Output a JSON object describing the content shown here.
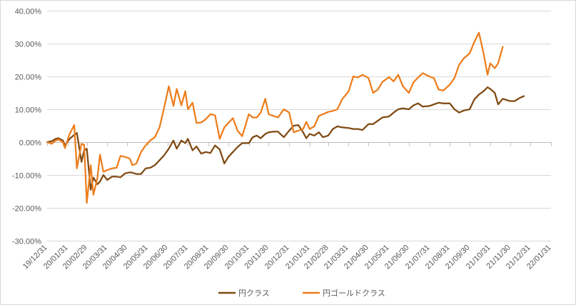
{
  "chart_data": {
    "type": "line",
    "title": "",
    "xlabel": "",
    "ylabel": "",
    "ylim": [
      -0.3,
      0.4
    ],
    "ytick_values": [
      -0.3,
      -0.2,
      -0.1,
      0.0,
      0.1,
      0.2,
      0.3,
      0.4
    ],
    "ytick_labels": [
      "-30.00%",
      "-20.00%",
      "-10.00%",
      "0.00%",
      "10.00%",
      "20.00%",
      "30.00%",
      "40.00%"
    ],
    "xlim": [
      "2019-12-31",
      "2022-01-31"
    ],
    "xtick_dates": [
      "2019-12-31",
      "2020-01-31",
      "2020-02-29",
      "2020-03-31",
      "2020-04-30",
      "2020-05-31",
      "2020-06-30",
      "2020-07-31",
      "2020-08-31",
      "2020-09-30",
      "2020-10-31",
      "2020-11-30",
      "2020-12-31",
      "2021-01-31",
      "2021-02-28",
      "2021-03-31",
      "2021-04-30",
      "2021-05-31",
      "2021-06-30",
      "2021-07-31",
      "2021-08-31",
      "2021-09-30",
      "2021-10-31",
      "2021-11-30",
      "2021-12-31",
      "2022-01-31"
    ],
    "xtick_labels": [
      "19/12/31",
      "20/01/31",
      "20/02/29",
      "20/03/31",
      "20/04/30",
      "20/05/31",
      "20/06/30",
      "20/07/31",
      "20/08/31",
      "20/09/30",
      "20/10/31",
      "20/11/30",
      "20/12/31",
      "21/01/31",
      "21/02/28",
      "21/03/31",
      "21/04/30",
      "21/05/31",
      "21/06/30",
      "21/07/31",
      "21/08/31",
      "21/09/30",
      "21/10/31",
      "21/11/30",
      "21/12/31",
      "22/01/31"
    ],
    "grid": true,
    "legend_position": "bottom",
    "series": [
      {
        "name": "円クラス",
        "color": "#7f4a12",
        "points": [
          [
            "2019-12-31",
            0.0
          ],
          [
            "2020-01-07",
            0.003
          ],
          [
            "2020-01-13",
            0.01
          ],
          [
            "2020-01-17",
            0.012
          ],
          [
            "2020-01-24",
            0.005
          ],
          [
            "2020-01-27",
            -0.01
          ],
          [
            "2020-02-03",
            0.01
          ],
          [
            "2020-02-10",
            0.022
          ],
          [
            "2020-02-14",
            0.028
          ],
          [
            "2020-02-21",
            -0.06
          ],
          [
            "2020-02-25",
            -0.025
          ],
          [
            "2020-02-29",
            -0.02
          ],
          [
            "2020-03-06",
            -0.145
          ],
          [
            "2020-03-10",
            -0.108
          ],
          [
            "2020-03-16",
            -0.128
          ],
          [
            "2020-03-20",
            -0.12
          ],
          [
            "2020-03-25",
            -0.1
          ],
          [
            "2020-03-31",
            -0.115
          ],
          [
            "2020-04-07",
            -0.105
          ],
          [
            "2020-04-14",
            -0.105
          ],
          [
            "2020-04-20",
            -0.107
          ],
          [
            "2020-04-27",
            -0.095
          ],
          [
            "2020-05-04",
            -0.092
          ],
          [
            "2020-05-08",
            -0.093
          ],
          [
            "2020-05-14",
            -0.097
          ],
          [
            "2020-05-21",
            -0.097
          ],
          [
            "2020-05-28",
            -0.08
          ],
          [
            "2020-06-04",
            -0.078
          ],
          [
            "2020-06-11",
            -0.07
          ],
          [
            "2020-06-18",
            -0.055
          ],
          [
            "2020-06-25",
            -0.04
          ],
          [
            "2020-07-02",
            -0.02
          ],
          [
            "2020-07-09",
            0.005
          ],
          [
            "2020-07-14",
            -0.02
          ],
          [
            "2020-07-21",
            0.005
          ],
          [
            "2020-07-27",
            -0.003
          ],
          [
            "2020-07-31",
            0.01
          ],
          [
            "2020-08-07",
            -0.025
          ],
          [
            "2020-08-13",
            -0.013
          ],
          [
            "2020-08-20",
            -0.035
          ],
          [
            "2020-08-27",
            -0.03
          ],
          [
            "2020-09-03",
            -0.033
          ],
          [
            "2020-09-10",
            -0.01
          ],
          [
            "2020-09-17",
            -0.022
          ],
          [
            "2020-09-24",
            -0.065
          ],
          [
            "2020-09-30",
            -0.045
          ],
          [
            "2020-10-07",
            -0.03
          ],
          [
            "2020-10-14",
            -0.015
          ],
          [
            "2020-10-21",
            -0.003
          ],
          [
            "2020-10-31",
            -0.003
          ],
          [
            "2020-11-06",
            0.015
          ],
          [
            "2020-11-12",
            0.02
          ],
          [
            "2020-11-18",
            0.012
          ],
          [
            "2020-11-25",
            0.025
          ],
          [
            "2020-11-30",
            0.03
          ],
          [
            "2020-12-07",
            0.032
          ],
          [
            "2020-12-14",
            0.032
          ],
          [
            "2020-12-23",
            0.015
          ],
          [
            "2020-12-31",
            0.035
          ],
          [
            "2021-01-07",
            0.05
          ],
          [
            "2021-01-14",
            0.052
          ],
          [
            "2021-01-21",
            0.03
          ],
          [
            "2021-01-26",
            0.012
          ],
          [
            "2021-01-31",
            0.025
          ],
          [
            "2021-02-07",
            0.02
          ],
          [
            "2021-02-14",
            0.03
          ],
          [
            "2021-02-20",
            0.015
          ],
          [
            "2021-02-28",
            0.02
          ],
          [
            "2021-03-07",
            0.04
          ],
          [
            "2021-03-14",
            0.048
          ],
          [
            "2021-03-21",
            0.045
          ],
          [
            "2021-03-31",
            0.043
          ],
          [
            "2021-04-07",
            0.04
          ],
          [
            "2021-04-14",
            0.04
          ],
          [
            "2021-04-21",
            0.037
          ],
          [
            "2021-04-30",
            0.055
          ],
          [
            "2021-05-07",
            0.055
          ],
          [
            "2021-05-14",
            0.065
          ],
          [
            "2021-05-21",
            0.075
          ],
          [
            "2021-05-31",
            0.078
          ],
          [
            "2021-06-07",
            0.09
          ],
          [
            "2021-06-14",
            0.1
          ],
          [
            "2021-06-21",
            0.103
          ],
          [
            "2021-06-30",
            0.1
          ],
          [
            "2021-07-07",
            0.112
          ],
          [
            "2021-07-14",
            0.118
          ],
          [
            "2021-07-21",
            0.108
          ],
          [
            "2021-07-31",
            0.11
          ],
          [
            "2021-08-07",
            0.115
          ],
          [
            "2021-08-14",
            0.12
          ],
          [
            "2021-08-21",
            0.118
          ],
          [
            "2021-08-31",
            0.118
          ],
          [
            "2021-09-07",
            0.1
          ],
          [
            "2021-09-14",
            0.09
          ],
          [
            "2021-09-21",
            0.096
          ],
          [
            "2021-09-30",
            0.1
          ],
          [
            "2021-10-07",
            0.13
          ],
          [
            "2021-10-14",
            0.145
          ],
          [
            "2021-10-21",
            0.155
          ],
          [
            "2021-10-27",
            0.167
          ],
          [
            "2021-10-31",
            0.162
          ],
          [
            "2021-11-07",
            0.15
          ],
          [
            "2021-11-12",
            0.115
          ],
          [
            "2021-11-19",
            0.132
          ],
          [
            "2021-11-30",
            0.125
          ],
          [
            "2021-12-07",
            0.125
          ],
          [
            "2021-12-15",
            0.135
          ],
          [
            "2021-12-21",
            0.14
          ]
        ]
      },
      {
        "name": "円ゴールドクラス",
        "color": "#ed7d1c",
        "points": [
          [
            "2019-12-31",
            0.0
          ],
          [
            "2020-01-07",
            -0.005
          ],
          [
            "2020-01-13",
            0.005
          ],
          [
            "2020-01-17",
            0.008
          ],
          [
            "2020-01-24",
            0.0
          ],
          [
            "2020-01-27",
            -0.018
          ],
          [
            "2020-02-03",
            0.025
          ],
          [
            "2020-02-10",
            0.052
          ],
          [
            "2020-02-14",
            -0.08
          ],
          [
            "2020-02-21",
            -0.005
          ],
          [
            "2020-02-25",
            -0.008
          ],
          [
            "2020-02-29",
            -0.185
          ],
          [
            "2020-03-06",
            -0.07
          ],
          [
            "2020-03-10",
            -0.16
          ],
          [
            "2020-03-16",
            -0.11
          ],
          [
            "2020-03-20",
            -0.038
          ],
          [
            "2020-03-25",
            -0.09
          ],
          [
            "2020-03-31",
            -0.085
          ],
          [
            "2020-04-07",
            -0.08
          ],
          [
            "2020-04-14",
            -0.078
          ],
          [
            "2020-04-20",
            -0.042
          ],
          [
            "2020-04-27",
            -0.045
          ],
          [
            "2020-05-04",
            -0.05
          ],
          [
            "2020-05-08",
            -0.07
          ],
          [
            "2020-05-14",
            -0.065
          ],
          [
            "2020-05-21",
            -0.03
          ],
          [
            "2020-05-28",
            -0.01
          ],
          [
            "2020-06-04",
            0.005
          ],
          [
            "2020-06-11",
            0.015
          ],
          [
            "2020-06-18",
            0.045
          ],
          [
            "2020-06-25",
            0.105
          ],
          [
            "2020-07-02",
            0.17
          ],
          [
            "2020-07-09",
            0.11
          ],
          [
            "2020-07-14",
            0.162
          ],
          [
            "2020-07-21",
            0.112
          ],
          [
            "2020-07-27",
            0.155
          ],
          [
            "2020-07-31",
            0.1
          ],
          [
            "2020-08-07",
            0.12
          ],
          [
            "2020-08-13",
            0.058
          ],
          [
            "2020-08-20",
            0.06
          ],
          [
            "2020-08-27",
            0.07
          ],
          [
            "2020-09-03",
            0.085
          ],
          [
            "2020-09-10",
            0.082
          ],
          [
            "2020-09-17",
            0.01
          ],
          [
            "2020-09-24",
            0.045
          ],
          [
            "2020-09-30",
            0.058
          ],
          [
            "2020-10-07",
            0.073
          ],
          [
            "2020-10-14",
            0.035
          ],
          [
            "2020-10-21",
            0.018
          ],
          [
            "2020-10-31",
            0.085
          ],
          [
            "2020-11-06",
            0.075
          ],
          [
            "2020-11-12",
            0.075
          ],
          [
            "2020-11-18",
            0.09
          ],
          [
            "2020-11-25",
            0.132
          ],
          [
            "2020-11-30",
            0.085
          ],
          [
            "2020-12-07",
            0.08
          ],
          [
            "2020-12-14",
            0.075
          ],
          [
            "2020-12-23",
            0.1
          ],
          [
            "2020-12-31",
            0.09
          ],
          [
            "2021-01-07",
            0.03
          ],
          [
            "2021-01-14",
            0.035
          ],
          [
            "2021-01-21",
            0.04
          ],
          [
            "2021-01-26",
            0.062
          ],
          [
            "2021-01-31",
            0.04
          ],
          [
            "2021-02-07",
            0.048
          ],
          [
            "2021-02-14",
            0.08
          ],
          [
            "2021-02-20",
            0.085
          ],
          [
            "2021-02-28",
            0.092
          ],
          [
            "2021-03-07",
            0.095
          ],
          [
            "2021-03-14",
            0.1
          ],
          [
            "2021-03-21",
            0.13
          ],
          [
            "2021-03-31",
            0.155
          ],
          [
            "2021-04-07",
            0.2
          ],
          [
            "2021-04-14",
            0.197
          ],
          [
            "2021-04-21",
            0.205
          ],
          [
            "2021-04-30",
            0.195
          ],
          [
            "2021-05-07",
            0.15
          ],
          [
            "2021-05-14",
            0.16
          ],
          [
            "2021-05-21",
            0.183
          ],
          [
            "2021-05-31",
            0.198
          ],
          [
            "2021-06-07",
            0.185
          ],
          [
            "2021-06-14",
            0.205
          ],
          [
            "2021-06-21",
            0.17
          ],
          [
            "2021-06-30",
            0.15
          ],
          [
            "2021-07-07",
            0.182
          ],
          [
            "2021-07-14",
            0.197
          ],
          [
            "2021-07-21",
            0.21
          ],
          [
            "2021-07-31",
            0.2
          ],
          [
            "2021-08-07",
            0.195
          ],
          [
            "2021-08-14",
            0.16
          ],
          [
            "2021-08-21",
            0.157
          ],
          [
            "2021-08-31",
            0.175
          ],
          [
            "2021-09-07",
            0.195
          ],
          [
            "2021-09-14",
            0.235
          ],
          [
            "2021-09-21",
            0.255
          ],
          [
            "2021-09-30",
            0.27
          ],
          [
            "2021-10-07",
            0.305
          ],
          [
            "2021-10-14",
            0.333
          ],
          [
            "2021-10-21",
            0.27
          ],
          [
            "2021-10-27",
            0.205
          ],
          [
            "2021-10-31",
            0.24
          ],
          [
            "2021-11-07",
            0.225
          ],
          [
            "2021-11-12",
            0.24
          ],
          [
            "2021-11-19",
            0.29
          ]
        ]
      }
    ]
  }
}
